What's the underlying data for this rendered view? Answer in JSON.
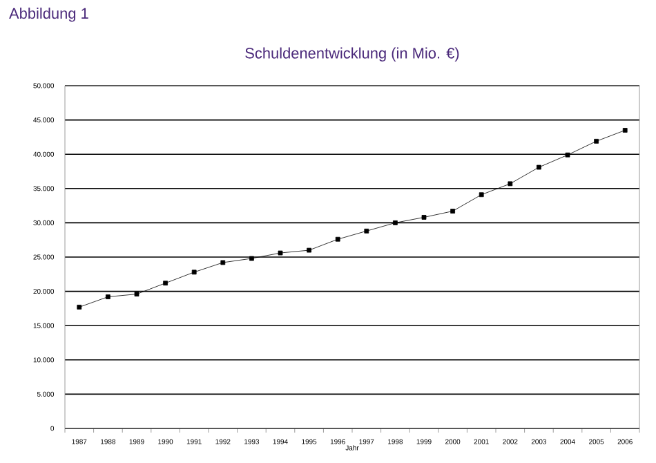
{
  "chart_data": {
    "type": "line",
    "title": "Schuldenentwicklung (in Mio. €)",
    "xlabel": "Jahr",
    "annotations": [
      "Abbildung 1"
    ],
    "categories": [
      "1987",
      "1988",
      "1989",
      "1990",
      "1991",
      "1992",
      "1993",
      "1994",
      "1995",
      "1996",
      "1997",
      "1998",
      "1999",
      "2000",
      "2001",
      "2002",
      "2003",
      "2004",
      "2005",
      "2006"
    ],
    "series": [
      {
        "color": "#000000",
        "values": [
          17700,
          19200,
          19600,
          21200,
          22800,
          24200,
          24800,
          25600,
          26000,
          27600,
          28800,
          30000,
          30800,
          31700,
          34100,
          35700,
          38100,
          39900,
          41900,
          43500
        ]
      }
    ],
    "ylim": [
      0,
      50000
    ],
    "yticks": [
      {
        "value": 0,
        "label": "0"
      },
      {
        "value": 5000,
        "label": "5.000"
      },
      {
        "value": 10000,
        "label": "10.000"
      },
      {
        "value": 15000,
        "label": "15.000"
      },
      {
        "value": 20000,
        "label": "20.000"
      },
      {
        "value": 25000,
        "label": "25.000"
      },
      {
        "value": 30000,
        "label": "30.000"
      },
      {
        "value": 35000,
        "label": "35.000"
      },
      {
        "value": 40000,
        "label": "40.000"
      },
      {
        "value": 45000,
        "label": "45.000"
      },
      {
        "value": 50000,
        "label": "50.000"
      }
    ],
    "grid": "y",
    "marker": "square",
    "line_style": "solid"
  }
}
